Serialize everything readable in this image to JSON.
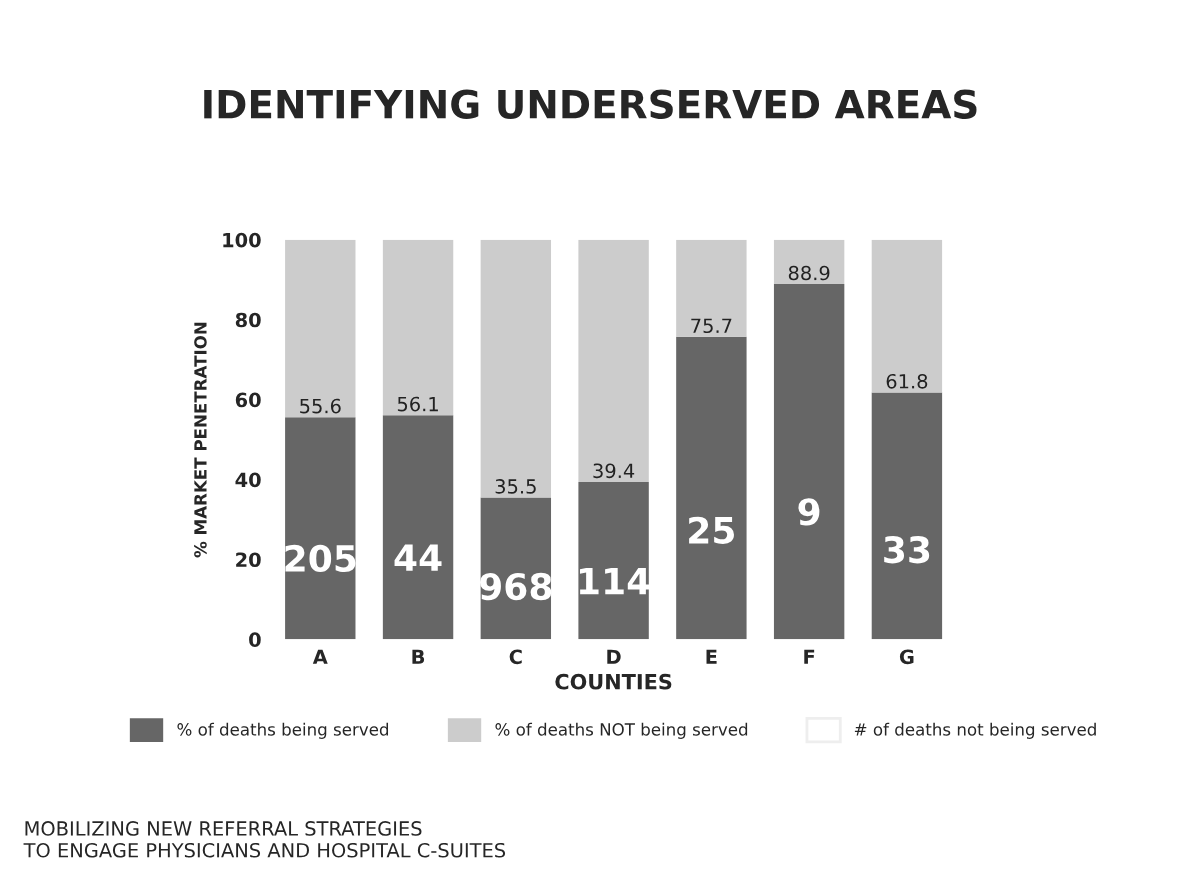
{
  "chart_data": {
    "type": "bar",
    "title": "IDENTIFYING UNDERSERVED AREAS",
    "xlabel": "COUNTIES",
    "ylabel": "% MARKET PENETRATION",
    "categories": [
      "A",
      "B",
      "C",
      "D",
      "E",
      "F",
      "G"
    ],
    "stacked": true,
    "series": [
      {
        "name": "% of deaths being served",
        "color": "#666666",
        "values": [
          55.6,
          56.1,
          35.5,
          39.4,
          75.7,
          88.9,
          61.8
        ],
        "value_labels": [
          "55.6",
          "56.1",
          "35.5",
          "39.4",
          "75.7",
          "88.9",
          "61.8"
        ]
      },
      {
        "name": "% of deaths NOT being served",
        "color": "#cccccc",
        "values": [
          44.4,
          43.9,
          64.5,
          60.6,
          24.3,
          11.1,
          38.2
        ]
      },
      {
        "name": "# of deaths not being served",
        "color": "#ffffff",
        "values": [
          null,
          null,
          null,
          null,
          null,
          null,
          null
        ]
      }
    ],
    "ylim": [
      0,
      100
    ],
    "yticks": [
      0,
      20,
      40,
      60,
      80,
      100
    ],
    "grid": false,
    "legend": "bottom",
    "annotations": [
      "205",
      "44",
      "968",
      "114",
      "25",
      "9",
      "33",
      "MOBILIZING NEW REFERRAL STRATEGIES\nTO ENGAGE PHYSICIANS AND HOSPITAL C-SUITES"
    ]
  }
}
